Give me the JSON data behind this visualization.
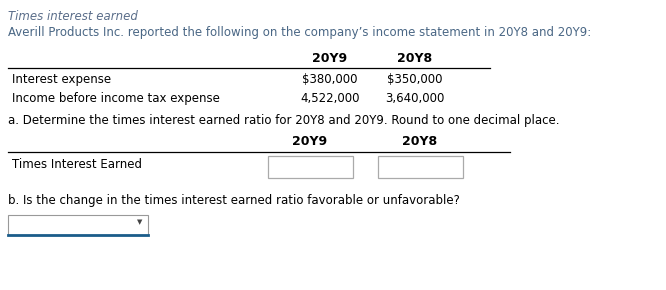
{
  "title": "Times interest earned",
  "intro_text": "Averill Products Inc. reported the following on the company’s income statement in 20Y8 and 20Y9:",
  "col_headers": [
    "20Y9",
    "20Y8"
  ],
  "row1_label": "Interest expense",
  "row1_values": [
    "$380,000",
    "$350,000"
  ],
  "row2_label": "Income before income tax expense",
  "row2_values": [
    "4,522,000",
    "3,640,000"
  ],
  "part_a_text": "a. Determine the times interest earned ratio for 20Y8 and 20Y9. Round to one decimal place.",
  "part_a_col_headers": [
    "20Y9",
    "20Y8"
  ],
  "part_a_row_label": "Times Interest Earned",
  "part_b_text": "b. Is the change in the times interest earned ratio favorable or unfavorable?",
  "bg_color": "#ffffff",
  "text_color": "#000000",
  "line_color": "#000000",
  "box_edge_color": "#aaaaaa",
  "dropdown_underline_color": "#1a5c8a",
  "title_color": "#5b6e8a",
  "intro_color": "#4a6785",
  "body_fs": 8.5,
  "bold_fs": 9.0,
  "title_fs": 8.5
}
